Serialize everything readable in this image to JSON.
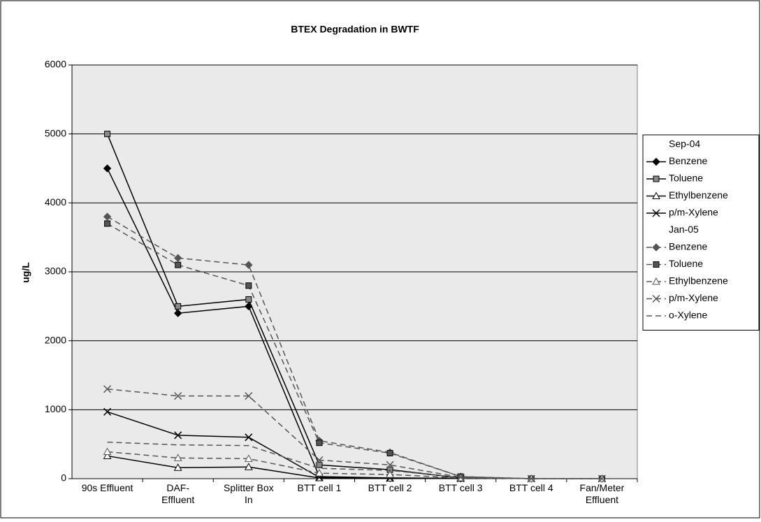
{
  "chart_data": {
    "type": "line",
    "title": "BTEX Degradation in BWTF",
    "y_label": "ug/L",
    "categories": [
      "90s Effluent",
      "DAF-\nEffluent",
      "Splitter Box\nIn",
      "BTT cell 1",
      "BTT cell 2",
      "BTT cell 3",
      "BTT cell 4",
      "Fan/Meter\nEffluent"
    ],
    "ylim": [
      0,
      6000
    ],
    "yticks": [
      0,
      1000,
      2000,
      3000,
      4000,
      5000,
      6000
    ],
    "grid": true,
    "legend": "right",
    "series_groups": [
      {
        "name": "Sep-04",
        "dash": "solid",
        "series": [
          {
            "name": "Benzene",
            "color": "#000000",
            "marker": "diamond",
            "values": [
              4500,
              2400,
              2500,
              30,
              10,
              5,
              null,
              null
            ]
          },
          {
            "name": "Toluene",
            "color": "#000000",
            "marker": "square",
            "values": [
              5000,
              2500,
              2600,
              200,
              130,
              10,
              null,
              null
            ]
          },
          {
            "name": "Ethylbenzene",
            "color": "#000000",
            "marker": "triangle",
            "values": [
              330,
              160,
              170,
              10,
              5,
              2,
              null,
              null
            ]
          },
          {
            "name": "p/m-Xylene",
            "color": "#000000",
            "marker": "x",
            "values": [
              970,
              630,
              600,
              20,
              10,
              5,
              null,
              null
            ]
          }
        ]
      },
      {
        "name": "Jan-05",
        "dash": "dashed",
        "series": [
          {
            "name": "Benzene",
            "color": "#555555",
            "marker": "diamond",
            "values": [
              3800,
              3200,
              3100,
              550,
              380,
              30,
              0,
              0
            ]
          },
          {
            "name": "Toluene",
            "color": "#555555",
            "marker": "square",
            "values": [
              3700,
              3100,
              2800,
              520,
              370,
              30,
              0,
              0
            ]
          },
          {
            "name": "Ethylbenzene",
            "color": "#555555",
            "marker": "triangle",
            "values": [
              390,
              300,
              290,
              80,
              60,
              10,
              0,
              0
            ]
          },
          {
            "name": "p/m-Xylene",
            "color": "#555555",
            "marker": "x",
            "values": [
              1300,
              1200,
              1200,
              270,
              200,
              20,
              0,
              0
            ]
          },
          {
            "name": "o-Xylene",
            "color": "#555555",
            "marker": "none",
            "values": [
              530,
              490,
              480,
              150,
              120,
              15,
              0,
              0
            ]
          }
        ]
      }
    ]
  }
}
